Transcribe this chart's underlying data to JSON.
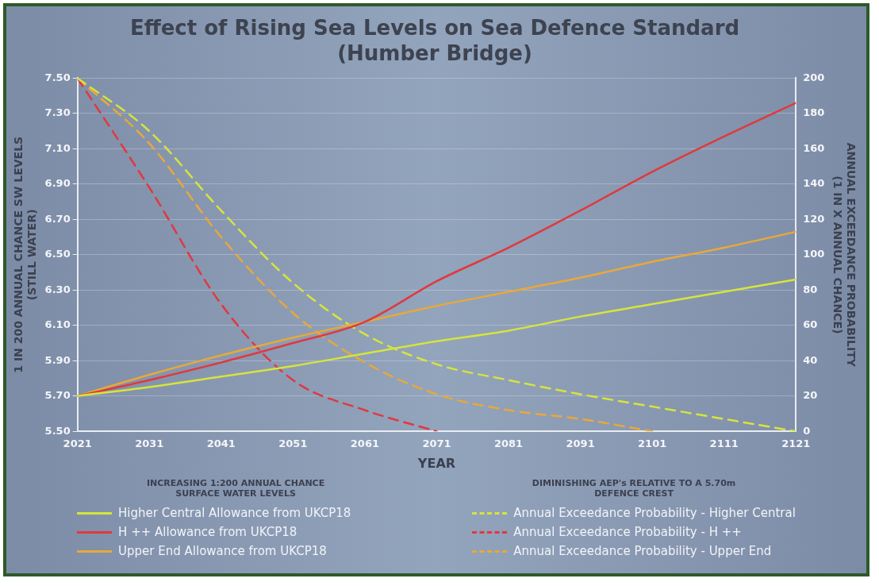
{
  "chart_data": {
    "type": "line",
    "title": "Effect of Rising Sea Levels on Sea Defence Standard\n(Humber Bridge)",
    "xlabel": "YEAR",
    "ylabel": "1 IN 200 ANNUAL CHANCE SW LEVELS\n(STILL WATER)",
    "y2label": "ANNUAL EXCEEDANCE PROBABILITY\n(1 IN X ANNUAL CHANCE)",
    "x": [
      2021,
      2031,
      2041,
      2051,
      2061,
      2071,
      2081,
      2091,
      2101,
      2111,
      2121
    ],
    "xlim": [
      2021,
      2121
    ],
    "xticks": [
      2021,
      2031,
      2041,
      2051,
      2061,
      2071,
      2081,
      2091,
      2101,
      2111,
      2121
    ],
    "ylim": [
      5.5,
      7.5
    ],
    "yticks": [
      {
        "value": 5.5,
        "label": "5.50"
      },
      {
        "value": 5.7,
        "label": "5.70"
      },
      {
        "value": 5.9,
        "label": "5.90"
      },
      {
        "value": 6.1,
        "label": "6.10"
      },
      {
        "value": 6.3,
        "label": "6.30"
      },
      {
        "value": 6.5,
        "label": "6.50"
      },
      {
        "value": 6.7,
        "label": "6.70"
      },
      {
        "value": 6.9,
        "label": "6.90"
      },
      {
        "value": 7.1,
        "label": "7.10"
      },
      {
        "value": 7.3,
        "label": "7.30"
      },
      {
        "value": 7.5,
        "label": "7.50"
      }
    ],
    "y2lim": [
      0,
      200
    ],
    "y2ticks": [
      0,
      20,
      40,
      60,
      80,
      100,
      120,
      140,
      160,
      180,
      200
    ],
    "grid": "y",
    "marker": "none",
    "legend": "bottom",
    "annotations": [
      "INCREASING 1:200 ANNUAL CHANCE\nSURFACE WATER LEVELS",
      "DIMINISHING AEP's RELATIVE TO A 5.70m\nDEFENCE CREST"
    ],
    "series": [
      {
        "name": "Higher Central Allowance from UKCP18",
        "color": "#d6e43c",
        "line_style": "solid",
        "values": [
          5.7,
          5.75,
          5.81,
          5.87,
          5.94,
          6.01,
          6.07,
          6.15,
          6.22,
          6.29,
          6.36
        ]
      },
      {
        "name": "H ++ Allowance from UKCP18",
        "color": "#e0393e",
        "line_style": "solid",
        "values": [
          5.7,
          5.79,
          5.89,
          6.0,
          6.12,
          6.35,
          6.54,
          6.75,
          6.97,
          7.17,
          7.36
        ]
      },
      {
        "name": "Upper End Allowance from UKCP18",
        "color": "#e8a83a",
        "line_style": "solid",
        "values": [
          5.7,
          5.82,
          5.93,
          6.03,
          6.12,
          6.21,
          6.29,
          6.37,
          6.46,
          6.54,
          6.63
        ]
      },
      {
        "name": "Annual Exceedance Probability - Higher Central",
        "color": "#d6e43c",
        "line_style": "dashed",
        "axis": "y2",
        "values": [
          200,
          170,
          125,
          84,
          55,
          38,
          29,
          21,
          14,
          7,
          0
        ]
      },
      {
        "name": "Annual Exceedance Probability - H ++",
        "color": "#e0393e",
        "line_style": "dashed",
        "axis": "y2",
        "values": [
          200,
          138,
          72,
          29,
          12,
          0,
          null,
          null,
          null,
          null,
          null
        ]
      },
      {
        "name": "Annual Exceedance Probability - Upper End",
        "color": "#e8a83a",
        "line_style": "dashed",
        "axis": "y2",
        "values": [
          200,
          163,
          110,
          67,
          39,
          21,
          12,
          7,
          0,
          null,
          null
        ]
      }
    ]
  }
}
